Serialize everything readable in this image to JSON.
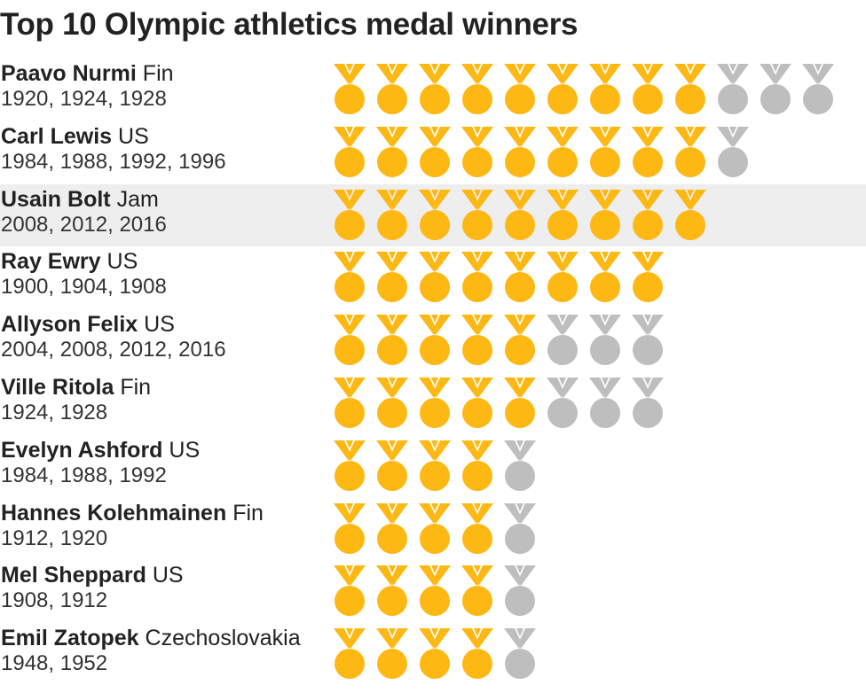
{
  "title": "Top 10 Olympic athletics medal winners",
  "colors": {
    "gold": "#FDB813",
    "other": "#BEBEBE",
    "highlight_bg": "#EEEEEE"
  },
  "chart_data": {
    "type": "pictograph",
    "title": "Top 10 Olympic athletics medal winners",
    "series": [
      {
        "name": "Gold medals"
      },
      {
        "name": "Other medals"
      }
    ],
    "rows": [
      {
        "name": "Paavo Nurmi",
        "country": "Fin",
        "years": "1920, 1924, 1928",
        "gold": 9,
        "other": 3,
        "highlighted": false
      },
      {
        "name": "Carl Lewis",
        "country": "US",
        "years": "1984, 1988, 1992, 1996",
        "gold": 9,
        "other": 1,
        "highlighted": false
      },
      {
        "name": "Usain Bolt",
        "country": "Jam",
        "years": "2008, 2012, 2016",
        "gold": 9,
        "other": 0,
        "highlighted": true
      },
      {
        "name": "Ray Ewry",
        "country": "US",
        "years": "1900, 1904, 1908",
        "gold": 8,
        "other": 0,
        "highlighted": false
      },
      {
        "name": "Allyson Felix",
        "country": "US",
        "years": "2004, 2008, 2012, 2016",
        "gold": 5,
        "other": 3,
        "highlighted": false
      },
      {
        "name": "Ville Ritola",
        "country": "Fin",
        "years": "1924, 1928",
        "gold": 5,
        "other": 3,
        "highlighted": false
      },
      {
        "name": "Evelyn Ashford",
        "country": "US",
        "years": "1984, 1988, 1992",
        "gold": 4,
        "other": 1,
        "highlighted": false
      },
      {
        "name": "Hannes Kolehmainen",
        "country": "Fin",
        "years": "1912, 1920",
        "gold": 4,
        "other": 1,
        "highlighted": false
      },
      {
        "name": "Mel Sheppard",
        "country": "US",
        "years": "1908, 1912",
        "gold": 4,
        "other": 1,
        "highlighted": false
      },
      {
        "name": "Emil Zatopek",
        "country": "Czechoslovakia",
        "years": "1948, 1952",
        "gold": 4,
        "other": 1,
        "highlighted": false
      }
    ]
  }
}
